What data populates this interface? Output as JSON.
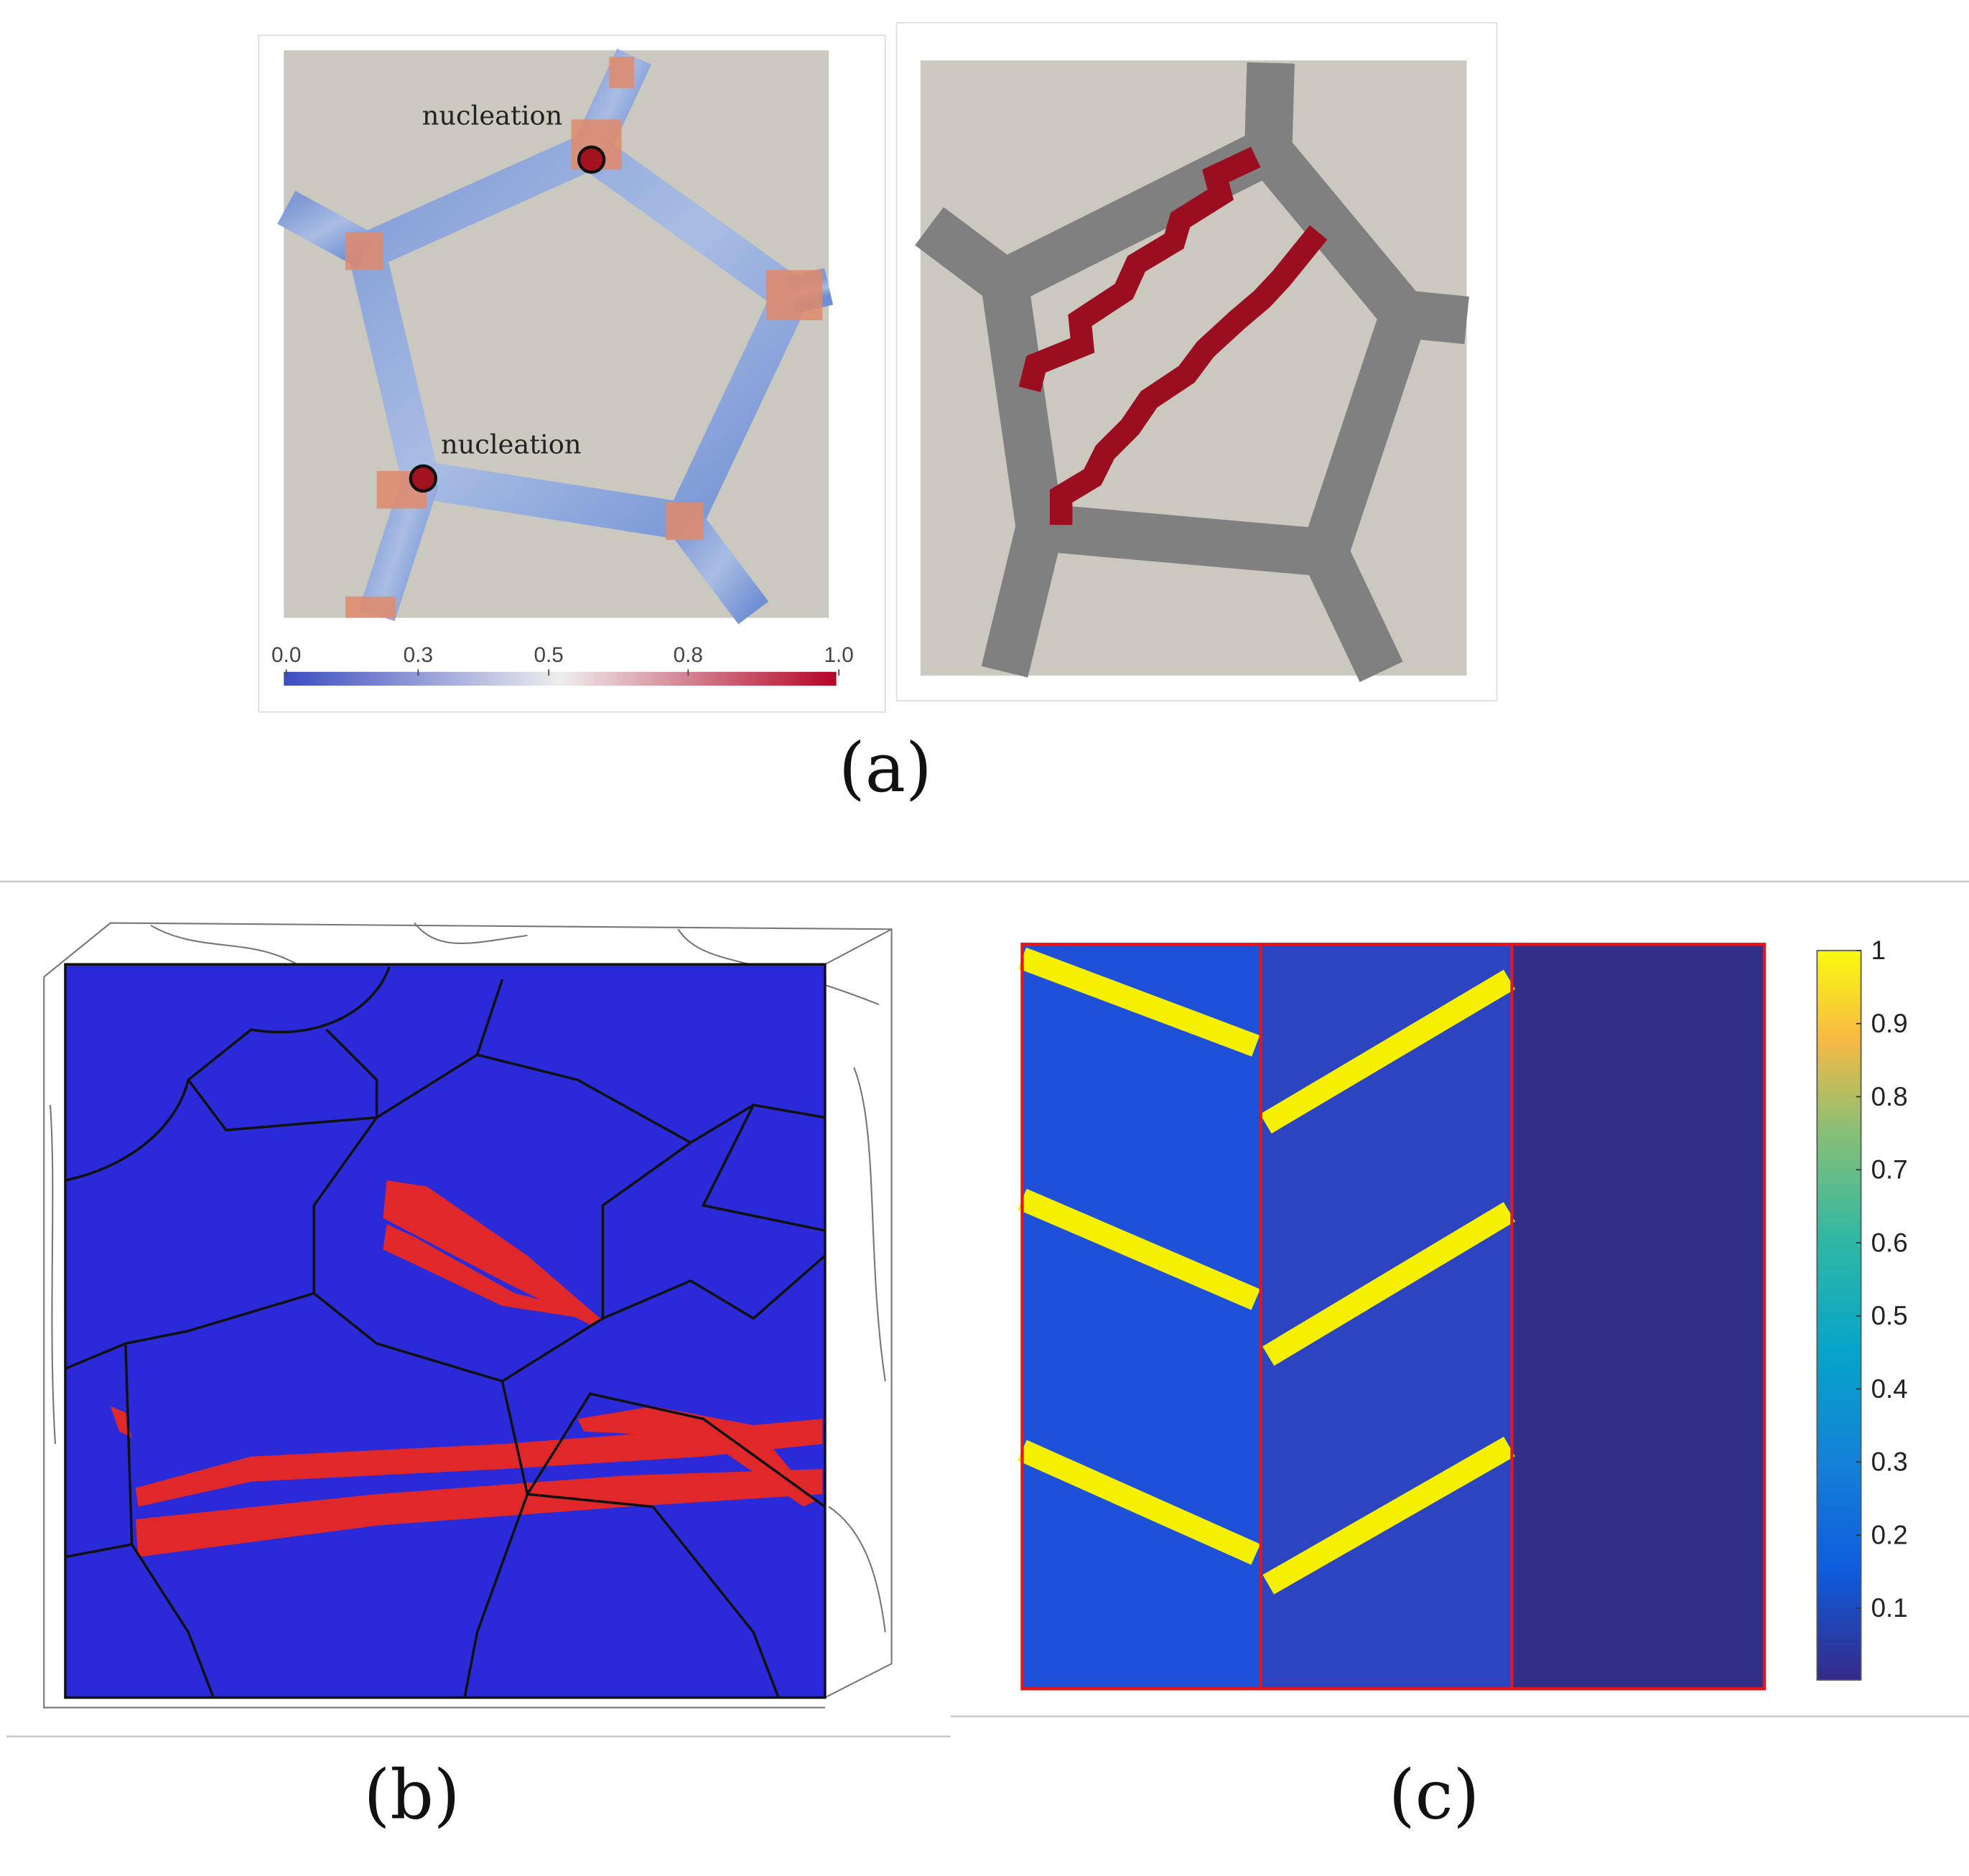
{
  "panel_a": {
    "label": "(a)",
    "annotations": [
      "nucleation",
      "nucleation"
    ],
    "colorbar_ticks": [
      "0.0",
      "0.3",
      "0.5",
      "0.8",
      "1.0"
    ]
  },
  "panel_b": {
    "label": "(b)"
  },
  "panel_c": {
    "label": "(c)",
    "colorbar_ticks": [
      "1",
      "0.9",
      "0.8",
      "0.7",
      "0.6",
      "0.5",
      "0.4",
      "0.3",
      "0.2",
      "0.1"
    ]
  }
}
